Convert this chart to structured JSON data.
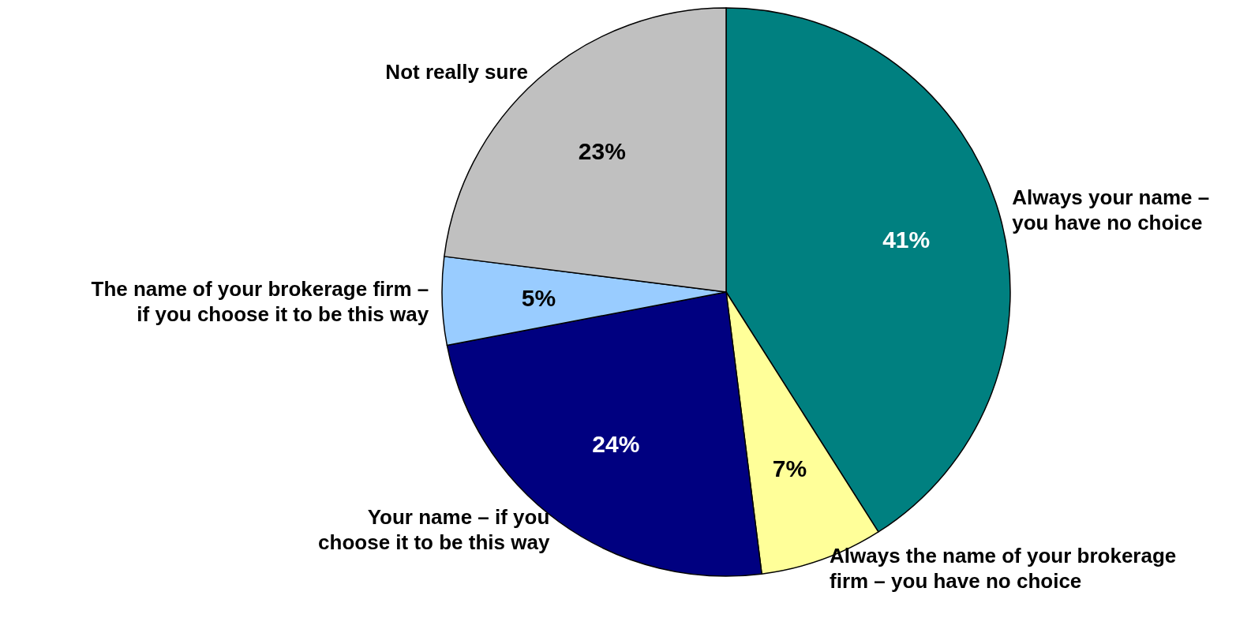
{
  "chart_data": {
    "type": "pie",
    "categories": [
      "Always your name –\nyou have no choice",
      "Always the name of your brokerage\nfirm – you have no choice",
      "Your name – if you\nchoose it to be this way",
      "The name of your brokerage firm –\nif you choose it to be this way",
      "Not really sure"
    ],
    "values": [
      41,
      7,
      24,
      5,
      23
    ],
    "colors": [
      "#008080",
      "#ffff99",
      "#000080",
      "#99ccff",
      "#c0c0c0"
    ],
    "value_labels": [
      "41%",
      "7%",
      "24%",
      "5%",
      "23%"
    ],
    "legend": false
  }
}
